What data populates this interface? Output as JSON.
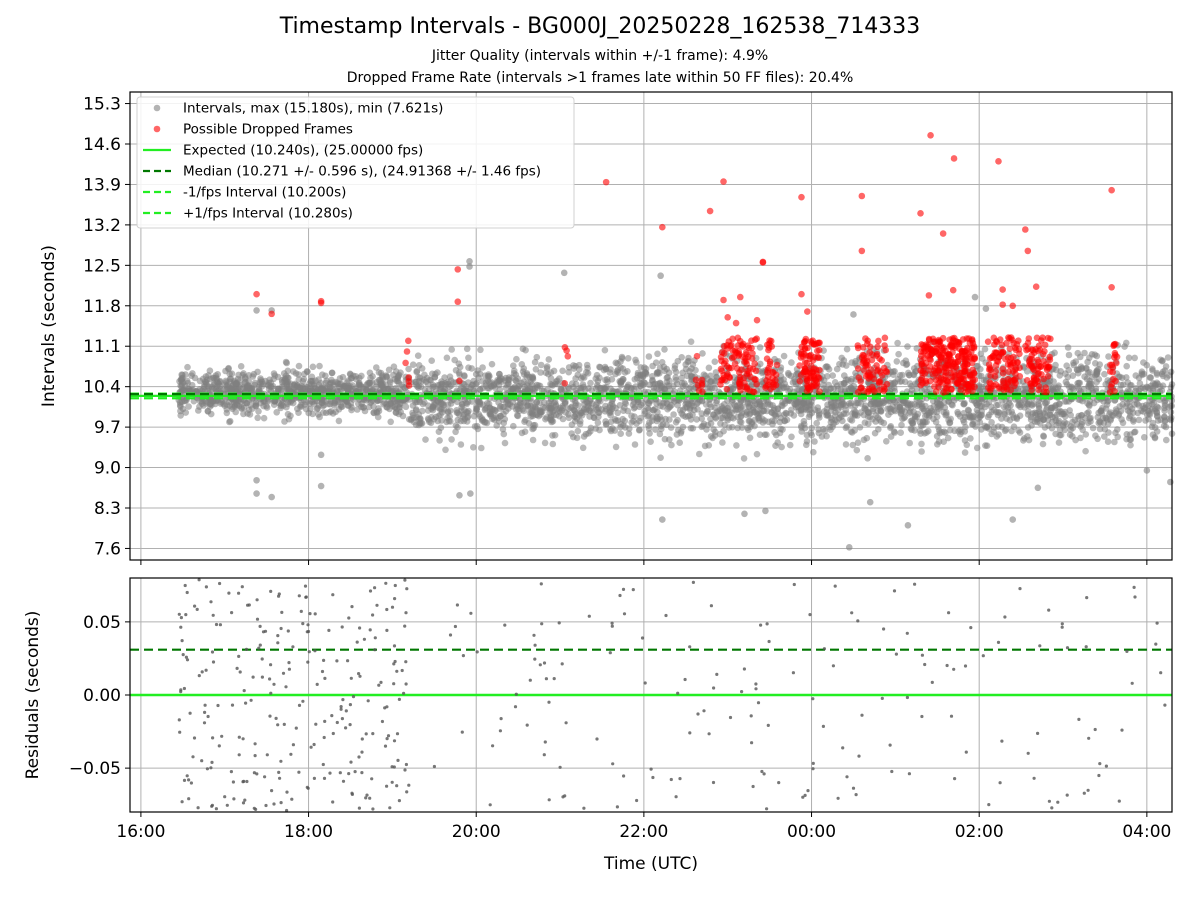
{
  "figure": {
    "title": "Timestamp Intervals - BG000J_20250228_162538_714333",
    "subtitle_1": "Jitter Quality (intervals within +/-1 frame): 4.9%",
    "subtitle_2": "Dropped Frame Rate (intervals >1 frames late within 50 FF files): 20.4%"
  },
  "colors": {
    "interval_points": "#808080",
    "dropped_points": "#ff0000",
    "expected_line": "#22ee22",
    "median_line": "#007700",
    "fps_interval_lines": "#22ee22",
    "grid": "#b0b0b0"
  },
  "chart_data": [
    {
      "id": "intervals",
      "type": "scatter",
      "ylabel": "Intervals (seconds)",
      "x_axis": "time (hours, UTC)",
      "xlim": [
        15.87,
        28.3
      ],
      "ylim": [
        7.4,
        15.5
      ],
      "yticks": [
        7.6,
        8.3,
        9.0,
        9.7,
        10.4,
        11.1,
        11.8,
        12.5,
        13.2,
        13.9,
        14.6,
        15.3
      ],
      "ytick_labels": [
        "7.6",
        "8.3",
        "9.0",
        "9.7",
        "10.4",
        "11.1",
        "11.8",
        "12.5",
        "13.2",
        "13.9",
        "14.6",
        "15.3"
      ],
      "grid": true,
      "legend_position": "top-left",
      "legend": [
        {
          "label": "Intervals, max (15.180s), min (7.621s)",
          "kind": "dot",
          "color": "#808080"
        },
        {
          "label": "Possible Dropped Frames",
          "kind": "dot",
          "color": "#ff0000"
        },
        {
          "label": "Expected (10.240s), (25.00000 fps)",
          "kind": "solid",
          "color": "#22ee22"
        },
        {
          "label": "Median (10.271 +/- 0.596 s), (24.91368 +/- 1.46 fps)",
          "kind": "dashed",
          "color": "#007700"
        },
        {
          "label": "-1/fps Interval (10.200s)",
          "kind": "dashed",
          "color": "#22ee22"
        },
        {
          "label": "+1/fps Interval (10.280s)",
          "kind": "dashed",
          "color": "#22ee22"
        }
      ],
      "reference_lines": {
        "expected": 10.24,
        "median": 10.271,
        "minus_fps": 10.2,
        "plus_fps": 10.28
      },
      "interval_summary": {
        "max": 15.18,
        "min": 7.621,
        "n_points_approx": 3800,
        "start_hour": 16.45,
        "end_hour": 28.3
      },
      "interval_segments": [
        {
          "from": 16.45,
          "to": 19.2,
          "center": 10.3,
          "spread": 0.35
        },
        {
          "from": 19.2,
          "to": 21.5,
          "center": 10.2,
          "spread": 0.55
        },
        {
          "from": 21.5,
          "to": 28.3,
          "center": 10.2,
          "spread": 0.65
        }
      ],
      "outliers": [
        {
          "x": 17.38,
          "y": 8.78
        },
        {
          "x": 17.38,
          "y": 8.55
        },
        {
          "x": 17.56,
          "y": 8.49
        },
        {
          "x": 18.15,
          "y": 8.68
        },
        {
          "x": 18.15,
          "y": 9.22
        },
        {
          "x": 19.8,
          "y": 8.52
        },
        {
          "x": 19.93,
          "y": 8.55
        },
        {
          "x": 19.92,
          "y": 12.57
        },
        {
          "x": 19.92,
          "y": 12.48
        },
        {
          "x": 21.05,
          "y": 12.37
        },
        {
          "x": 22.2,
          "y": 12.32
        },
        {
          "x": 22.22,
          "y": 8.1
        },
        {
          "x": 23.2,
          "y": 8.2
        },
        {
          "x": 23.45,
          "y": 8.25
        },
        {
          "x": 24.45,
          "y": 7.62
        },
        {
          "x": 24.7,
          "y": 8.4
        },
        {
          "x": 25.15,
          "y": 8.0
        },
        {
          "x": 25.95,
          "y": 11.95
        },
        {
          "x": 26.08,
          "y": 11.75
        },
        {
          "x": 26.4,
          "y": 8.1
        },
        {
          "x": 26.7,
          "y": 8.65
        },
        {
          "x": 17.38,
          "y": 11.72
        },
        {
          "x": 17.56,
          "y": 11.72
        },
        {
          "x": 24.5,
          "y": 11.65
        },
        {
          "x": 28.0,
          "y": 8.95
        },
        {
          "x": 28.28,
          "y": 8.75
        }
      ],
      "dropped_points": [
        {
          "x": 17.38,
          "y": 12.0
        },
        {
          "x": 17.56,
          "y": 11.66
        },
        {
          "x": 18.15,
          "y": 11.88
        },
        {
          "x": 18.15,
          "y": 11.85
        },
        {
          "x": 19.78,
          "y": 12.43
        },
        {
          "x": 19.78,
          "y": 11.87
        },
        {
          "x": 19.8,
          "y": 10.5
        },
        {
          "x": 21.55,
          "y": 13.94
        },
        {
          "x": 22.22,
          "y": 13.16
        },
        {
          "x": 22.79,
          "y": 13.44
        },
        {
          "x": 22.95,
          "y": 13.95
        },
        {
          "x": 22.95,
          "y": 11.9
        },
        {
          "x": 23.15,
          "y": 11.95
        },
        {
          "x": 23.42,
          "y": 12.56
        },
        {
          "x": 23.42,
          "y": 12.55
        },
        {
          "x": 23.88,
          "y": 12.0
        },
        {
          "x": 23.88,
          "y": 13.68
        },
        {
          "x": 24.6,
          "y": 12.75
        },
        {
          "x": 24.6,
          "y": 13.7
        },
        {
          "x": 25.3,
          "y": 13.4
        },
        {
          "x": 25.42,
          "y": 14.75
        },
        {
          "x": 25.4,
          "y": 11.98
        },
        {
          "x": 25.57,
          "y": 13.05
        },
        {
          "x": 25.7,
          "y": 14.35
        },
        {
          "x": 25.69,
          "y": 12.07
        },
        {
          "x": 26.23,
          "y": 14.3
        },
        {
          "x": 26.28,
          "y": 12.08
        },
        {
          "x": 26.28,
          "y": 11.82
        },
        {
          "x": 26.4,
          "y": 11.8
        },
        {
          "x": 26.55,
          "y": 13.12
        },
        {
          "x": 26.58,
          "y": 12.75
        },
        {
          "x": 26.68,
          "y": 12.13
        },
        {
          "x": 27.58,
          "y": 13.8
        },
        {
          "x": 27.58,
          "y": 12.12
        },
        {
          "x": 23.0,
          "y": 11.6
        },
        {
          "x": 23.1,
          "y": 11.5
        },
        {
          "x": 23.35,
          "y": 11.55
        },
        {
          "x": 23.95,
          "y": 11.7
        }
      ],
      "dropped_clusters": [
        {
          "from": 19.15,
          "to": 19.2,
          "n": 6
        },
        {
          "from": 21.05,
          "to": 21.1,
          "n": 4
        },
        {
          "from": 22.62,
          "to": 22.7,
          "n": 8
        },
        {
          "from": 22.9,
          "to": 23.35,
          "n": 90
        },
        {
          "from": 23.45,
          "to": 23.6,
          "n": 30
        },
        {
          "from": 23.85,
          "to": 24.1,
          "n": 80
        },
        {
          "from": 24.55,
          "to": 24.9,
          "n": 70
        },
        {
          "from": 25.3,
          "to": 25.95,
          "n": 240
        },
        {
          "from": 26.1,
          "to": 26.5,
          "n": 90
        },
        {
          "from": 26.55,
          "to": 26.85,
          "n": 70
        },
        {
          "from": 27.55,
          "to": 27.65,
          "n": 20
        }
      ]
    },
    {
      "id": "residuals",
      "type": "scatter",
      "xlabel": "Time (UTC)",
      "ylabel": "Residuals (seconds)",
      "xlim": [
        15.87,
        28.3
      ],
      "ylim": [
        -0.08,
        0.08
      ],
      "yticks": [
        -0.05,
        0.0,
        0.05
      ],
      "ytick_labels": [
        "−0.05",
        "0.00",
        "0.05"
      ],
      "xticks": [
        16,
        18,
        20,
        22,
        24,
        26,
        28
      ],
      "xtick_labels": [
        "16:00",
        "18:00",
        "20:00",
        "22:00",
        "00:00",
        "02:00",
        "04:00"
      ],
      "grid": true,
      "reference_lines": {
        "zero": 0.0,
        "median": 0.031
      },
      "residual_segments": [
        {
          "from": 16.45,
          "to": 19.2,
          "n": 260
        },
        {
          "from": 19.5,
          "to": 28.3,
          "n": 170
        }
      ]
    }
  ]
}
